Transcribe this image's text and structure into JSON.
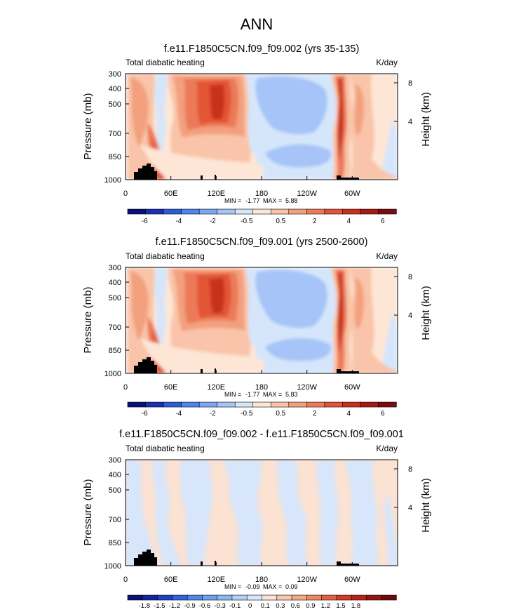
{
  "figure": {
    "title": "ANN"
  },
  "chart_data": [
    {
      "type": "heatmap",
      "title": "f.e11.F1850C5CN.f09_f09.002 (yrs 35-135)",
      "left_label": "Total diabatic heating",
      "units": "K/day",
      "ylabel": "Pressure (mb)",
      "ylabel_right": "Height (km)",
      "y_ticks": [
        "300",
        "400",
        "500",
        "700",
        "850",
        "1000"
      ],
      "y_right_ticks": [
        "8",
        "4"
      ],
      "x_ticks": [
        "0",
        "60E",
        "120E",
        "180",
        "120W",
        "60W"
      ],
      "min_label": "MIN = ",
      "min": "-1.77",
      "max_label": "MAX = ",
      "max": "5.88",
      "colorbar_labels": [
        "-6",
        "-4",
        "-2",
        "-0.5",
        "0.5",
        "2",
        "4",
        "6"
      ]
    },
    {
      "type": "heatmap",
      "title": "f.e11.F1850C5CN.f09_f09.001 (yrs 2500-2600)",
      "left_label": "Total diabatic heating",
      "units": "K/day",
      "ylabel": "Pressure (mb)",
      "ylabel_right": "Height (km)",
      "y_ticks": [
        "300",
        "400",
        "500",
        "700",
        "850",
        "1000"
      ],
      "y_right_ticks": [
        "8",
        "4"
      ],
      "x_ticks": [
        "0",
        "60E",
        "120E",
        "180",
        "120W",
        "60W"
      ],
      "min_label": "MIN = ",
      "min": "-1.77",
      "max_label": "MAX = ",
      "max": "5.83",
      "colorbar_labels": [
        "-6",
        "-4",
        "-2",
        "-0.5",
        "0.5",
        "2",
        "4",
        "6"
      ]
    },
    {
      "type": "heatmap",
      "title": "f.e11.F1850C5CN.f09_f09.002 - f.e11.F1850C5CN.f09_f09.001",
      "left_label": "Total diabatic heating",
      "units": "K/day",
      "ylabel": "Pressure (mb)",
      "ylabel_right": "Height (km)",
      "y_ticks": [
        "300",
        "400",
        "500",
        "700",
        "850",
        "1000"
      ],
      "y_right_ticks": [
        "8",
        "4"
      ],
      "x_ticks": [
        "0",
        "60E",
        "120E",
        "180",
        "120W",
        "60W"
      ],
      "min_label": "MIN = ",
      "min": "-0.09",
      "max_label": "MAX = ",
      "max": "0.09",
      "colorbar_labels": [
        "-1.8",
        "-1.5",
        "-1.2",
        "-0.9",
        "-0.6",
        "-0.3",
        "-0.1",
        "0",
        "0.1",
        "0.3",
        "0.6",
        "0.9",
        "1.2",
        "1.5",
        "1.8"
      ]
    }
  ],
  "colors": {
    "full_scale": [
      "#08107a",
      "#1a2fb0",
      "#2f5bd8",
      "#4f86ea",
      "#7aa6f2",
      "#a6c4f7",
      "#d5e6fb",
      "#fde6d6",
      "#f9c4a9",
      "#f3a07e",
      "#ec7a58",
      "#e25436",
      "#c8301c",
      "#a51a12",
      "#7a0d0d"
    ],
    "diff_scale": [
      "#08107a",
      "#14269e",
      "#2140c3",
      "#3462de",
      "#4f86ea",
      "#6e9ff0",
      "#8fb7f4",
      "#b3cff8",
      "#d7e6fb",
      "#fbe2d2",
      "#f8c8ae",
      "#f4aa88",
      "#ee8762",
      "#e56040",
      "#d43a24",
      "#b82218",
      "#941410",
      "#700b0b"
    ],
    "land": "#000000"
  }
}
